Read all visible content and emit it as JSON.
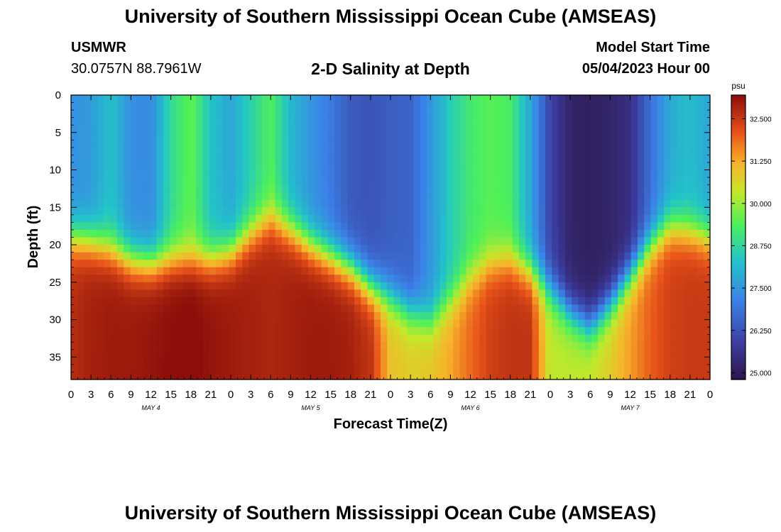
{
  "header": {
    "title": "University of Southern Mississippi Ocean Cube (AMSEAS)",
    "station_name": "USMWR",
    "station_coords": "30.0757N  88.7961W",
    "plot_title": "2-D Salinity at Depth",
    "run_label": "Model Start Time",
    "run_value": "05/04/2023 Hour 00"
  },
  "footer": {
    "title": "University of Southern Mississippi Ocean Cube (AMSEAS)"
  },
  "chart_data": {
    "type": "heatmap",
    "title": "2-D Salinity at Depth",
    "xlabel": "Forecast Time(Z)",
    "ylabel": "Depth (ft)",
    "x_ticks": [
      "0",
      "3",
      "6",
      "9",
      "12",
      "15",
      "18",
      "21",
      "0",
      "3",
      "6",
      "9",
      "12",
      "15",
      "18",
      "21",
      "0",
      "3",
      "6",
      "9",
      "12",
      "15",
      "18",
      "21",
      "0",
      "3",
      "6",
      "9",
      "12",
      "15",
      "18",
      "21",
      "0"
    ],
    "x_hours": [
      0,
      3,
      6,
      9,
      12,
      15,
      18,
      21,
      24,
      27,
      30,
      33,
      36,
      39,
      42,
      45,
      48,
      51,
      54,
      57,
      60,
      63,
      66,
      69,
      72,
      75,
      78,
      81,
      84,
      87,
      90,
      93,
      96
    ],
    "xlim": [
      0,
      96
    ],
    "day_labels": [
      {
        "text": "MAY 4",
        "hour": 12
      },
      {
        "text": "MAY 5",
        "hour": 36
      },
      {
        "text": "MAY 6",
        "hour": 60
      },
      {
        "text": "MAY 7",
        "hour": 84
      }
    ],
    "y_ticks": [
      "0",
      "5",
      "10",
      "15",
      "20",
      "25",
      "30",
      "35"
    ],
    "y_values": [
      0,
      5,
      10,
      15,
      20,
      25,
      30,
      35
    ],
    "ylim": [
      0,
      38
    ],
    "colorbar": {
      "unit": "psu",
      "min": 24.8,
      "max": 33.2,
      "tick_labels": [
        "32.500",
        "31.250",
        "30.000",
        "28.750",
        "27.500",
        "26.250",
        "25.000"
      ],
      "tick_values": [
        32.5,
        31.25,
        30.0,
        28.75,
        27.5,
        26.25,
        25.0
      ]
    },
    "profiles": [
      {
        "hour": 0,
        "surf": 27.4,
        "halo": 19.0,
        "deep": 32.7
      },
      {
        "hour": 3,
        "surf": 27.6,
        "halo": 19.5,
        "deep": 32.9
      },
      {
        "hour": 6,
        "surf": 28.3,
        "halo": 20.5,
        "deep": 33.0
      },
      {
        "hour": 9,
        "surf": 27.4,
        "halo": 22.0,
        "deep": 33.0
      },
      {
        "hour": 12,
        "surf": 27.3,
        "halo": 22.5,
        "deep": 33.1
      },
      {
        "hour": 15,
        "surf": 28.8,
        "halo": 22.0,
        "deep": 33.2
      },
      {
        "hour": 18,
        "surf": 29.6,
        "halo": 22.0,
        "deep": 33.3
      },
      {
        "hour": 21,
        "surf": 28.3,
        "halo": 22.0,
        "deep": 33.1
      },
      {
        "hour": 24,
        "surf": 27.8,
        "halo": 21.0,
        "deep": 33.0
      },
      {
        "hour": 27,
        "surf": 28.6,
        "halo": 18.5,
        "deep": 32.9
      },
      {
        "hour": 30,
        "surf": 29.4,
        "halo": 16.5,
        "deep": 32.8
      },
      {
        "hour": 33,
        "surf": 28.1,
        "halo": 18.0,
        "deep": 32.9
      },
      {
        "hour": 36,
        "surf": 27.5,
        "halo": 20.0,
        "deep": 33.0
      },
      {
        "hour": 39,
        "surf": 27.0,
        "halo": 21.5,
        "deep": 33.0
      },
      {
        "hour": 42,
        "surf": 26.4,
        "halo": 23.0,
        "deep": 32.9
      },
      {
        "hour": 45,
        "surf": 26.3,
        "halo": 25.5,
        "deep": 32.6
      },
      {
        "hour": 48,
        "surf": 26.5,
        "halo": 27.0,
        "deep": 31.0
      },
      {
        "hour": 51,
        "surf": 26.6,
        "halo": 29.0,
        "deep": 30.8
      },
      {
        "hour": 54,
        "surf": 27.5,
        "halo": 30.0,
        "deep": 30.9
      },
      {
        "hour": 57,
        "surf": 28.5,
        "halo": 27.5,
        "deep": 31.3
      },
      {
        "hour": 60,
        "surf": 29.2,
        "halo": 24.5,
        "deep": 31.9
      },
      {
        "hour": 63,
        "surf": 29.5,
        "halo": 22.5,
        "deep": 32.4
      },
      {
        "hour": 66,
        "surf": 29.3,
        "halo": 22.0,
        "deep": 32.6
      },
      {
        "hour": 69,
        "surf": 27.8,
        "halo": 23.5,
        "deep": 32.6
      },
      {
        "hour": 72,
        "surf": 26.0,
        "halo": 26.0,
        "deep": 30.3
      },
      {
        "hour": 75,
        "surf": 25.2,
        "halo": 29.0,
        "deep": 30.3
      },
      {
        "hour": 78,
        "surf": 25.1,
        "halo": 31.0,
        "deep": 30.4
      },
      {
        "hour": 81,
        "surf": 25.2,
        "halo": 28.0,
        "deep": 30.8
      },
      {
        "hour": 84,
        "surf": 25.5,
        "halo": 24.0,
        "deep": 31.4
      },
      {
        "hour": 87,
        "surf": 26.8,
        "halo": 20.0,
        "deep": 32.0
      },
      {
        "hour": 90,
        "surf": 27.9,
        "halo": 17.5,
        "deep": 32.4
      },
      {
        "hour": 93,
        "surf": 28.2,
        "halo": 18.0,
        "deep": 32.5
      },
      {
        "hour": 96,
        "surf": 27.8,
        "halo": 19.0,
        "deep": 32.5
      }
    ]
  }
}
